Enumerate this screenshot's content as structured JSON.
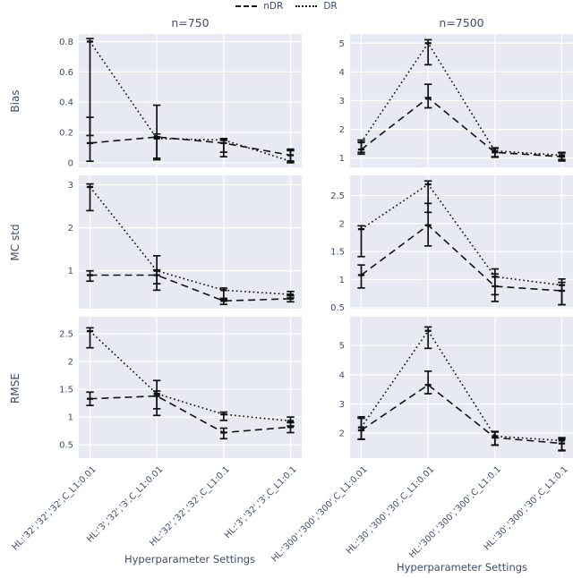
{
  "legend": {
    "items": [
      {
        "label": "nDR",
        "linestyle": "dashed"
      },
      {
        "label": "DR",
        "linestyle": "dotted"
      }
    ]
  },
  "column_titles": [
    "n=750",
    "n=7500"
  ],
  "row_labels": [
    "Bias",
    "MC std",
    "RMSE"
  ],
  "x_axis_title": "Hyperparameter Settings",
  "colors": {
    "panel_bg": "#e7eaf2",
    "grid": "#ffffff",
    "line": "#111111",
    "text": "#3e4d6d"
  },
  "chart_data": [
    {
      "type": "line",
      "metric": "Bias",
      "sample_size": "n=750",
      "categories": [
        "HL:'32','32','32',C_L1:0.01",
        "HL:'3','32','3',C_L1:0.01",
        "HL:'32','32','32',C_L1:0.1",
        "HL:'3','32','3',C_L1:0.1"
      ],
      "ylim": [
        -0.03,
        0.85
      ],
      "yticks": [
        0,
        0.2,
        0.4,
        0.6,
        0.8
      ],
      "series": [
        {
          "name": "nDR",
          "linestyle": "dashed",
          "values": [
            0.13,
            0.17,
            0.13,
            0.05
          ],
          "err_low": [
            0.01,
            0.03,
            0.04,
            0.01
          ],
          "err_high": [
            0.3,
            0.19,
            0.15,
            0.08
          ]
        },
        {
          "name": "DR",
          "linestyle": "dotted",
          "values": [
            0.8,
            0.16,
            0.15,
            0.01
          ],
          "err_low": [
            0.18,
            0.02,
            0.07,
            0.0
          ],
          "err_high": [
            0.82,
            0.38,
            0.16,
            0.09
          ]
        }
      ]
    },
    {
      "type": "line",
      "metric": "Bias",
      "sample_size": "n=7500",
      "categories": [
        "HL:'300','300','300',C_L1:0.01",
        "HL:'30','300','30',C_L1:0.01",
        "HL:'300','300','300',C_L1:0.1",
        "HL:'30','300','30',C_L1:0.1"
      ],
      "ylim": [
        0.68,
        5.32
      ],
      "yticks": [
        1,
        2,
        3,
        4,
        5
      ],
      "series": [
        {
          "name": "nDR",
          "linestyle": "dashed",
          "values": [
            1.3,
            3.1,
            1.2,
            1.05
          ],
          "err_low": [
            1.14,
            2.75,
            1.03,
            0.9
          ],
          "err_high": [
            1.56,
            3.57,
            1.34,
            1.18
          ]
        },
        {
          "name": "DR",
          "linestyle": "dotted",
          "values": [
            1.55,
            5.0,
            1.25,
            1.1
          ],
          "err_low": [
            1.2,
            4.25,
            1.05,
            0.95
          ],
          "err_high": [
            1.63,
            5.12,
            1.36,
            1.2
          ]
        }
      ]
    },
    {
      "type": "line",
      "metric": "MC std",
      "sample_size": "n=750",
      "categories": [
        "HL:'32','32','32',C_L1:0.01",
        "HL:'3','32','3',C_L1:0.01",
        "HL:'32','32','32',C_L1:0.1",
        "HL:'3','32','3',C_L1:0.1"
      ],
      "ylim": [
        0.12,
        3.22
      ],
      "yticks": [
        1,
        2,
        3
      ],
      "series": [
        {
          "name": "nDR",
          "linestyle": "dashed",
          "values": [
            0.9,
            0.9,
            0.3,
            0.35
          ],
          "err_low": [
            0.76,
            0.55,
            0.22,
            0.28
          ],
          "err_high": [
            1.0,
            1.02,
            0.36,
            0.42
          ]
        },
        {
          "name": "DR",
          "linestyle": "dotted",
          "values": [
            2.95,
            1.0,
            0.55,
            0.45
          ],
          "err_low": [
            2.4,
            0.7,
            0.33,
            0.37
          ],
          "err_high": [
            3.02,
            1.35,
            0.6,
            0.52
          ]
        }
      ]
    },
    {
      "type": "line",
      "metric": "MC std",
      "sample_size": "n=7500",
      "categories": [
        "HL:'300','300','300',C_L1:0.01",
        "HL:'30','300','30',C_L1:0.01",
        "HL:'300','300','300',C_L1:0.1",
        "HL:'30','300','30',C_L1:0.1"
      ],
      "ylim": [
        0.48,
        2.86
      ],
      "yticks": [
        0.5,
        1,
        1.5,
        2,
        2.5
      ],
      "series": [
        {
          "name": "nDR",
          "linestyle": "dashed",
          "values": [
            1.08,
            1.97,
            0.88,
            0.8
          ],
          "err_low": [
            0.85,
            1.6,
            0.61,
            0.55
          ],
          "err_high": [
            1.26,
            2.36,
            1.1,
            0.95
          ]
        },
        {
          "name": "DR",
          "linestyle": "dotted",
          "values": [
            1.9,
            2.7,
            1.05,
            0.9
          ],
          "err_low": [
            1.41,
            2.2,
            0.73,
            0.55
          ],
          "err_high": [
            1.96,
            2.76,
            1.19,
            1.01
          ]
        }
      ]
    },
    {
      "type": "line",
      "metric": "RMSE",
      "sample_size": "n=750",
      "categories": [
        "HL:'32','32','32',C_L1:0.01",
        "HL:'3','32','3',C_L1:0.01",
        "HL:'32','32','32',C_L1:0.1",
        "HL:'3','32','3',C_L1:0.1"
      ],
      "ylim": [
        0.26,
        2.81
      ],
      "yticks": [
        0.5,
        1,
        1.5,
        2,
        2.5
      ],
      "series": [
        {
          "name": "nDR",
          "linestyle": "dashed",
          "values": [
            1.33,
            1.38,
            0.72,
            0.82
          ],
          "err_low": [
            1.21,
            1.03,
            0.61,
            0.72
          ],
          "err_high": [
            1.45,
            1.47,
            0.8,
            0.9
          ]
        },
        {
          "name": "DR",
          "linestyle": "dotted",
          "values": [
            2.55,
            1.42,
            1.05,
            0.93
          ],
          "err_low": [
            2.25,
            1.15,
            0.94,
            0.84
          ],
          "err_high": [
            2.61,
            1.66,
            1.09,
            1.0
          ]
        }
      ]
    },
    {
      "type": "line",
      "metric": "RMSE",
      "sample_size": "n=7500",
      "categories": [
        "HL:'300','300','300',C_L1:0.01",
        "HL:'30','300','30',C_L1:0.01",
        "HL:'300','300','300',C_L1:0.1",
        "HL:'30','300','30',C_L1:0.1"
      ],
      "ylim": [
        1.15,
        5.98
      ],
      "yticks": [
        2,
        3,
        4,
        5
      ],
      "series": [
        {
          "name": "nDR",
          "linestyle": "dashed",
          "values": [
            2.1,
            3.65,
            1.85,
            1.65
          ],
          "err_low": [
            1.79,
            3.35,
            1.59,
            1.4
          ],
          "err_high": [
            2.51,
            4.12,
            2.04,
            1.8
          ]
        },
        {
          "name": "DR",
          "linestyle": "dotted",
          "values": [
            2.2,
            5.5,
            1.9,
            1.75
          ],
          "err_low": [
            1.8,
            4.9,
            1.6,
            1.42
          ],
          "err_high": [
            2.56,
            5.63,
            2.06,
            1.85
          ]
        }
      ]
    }
  ]
}
